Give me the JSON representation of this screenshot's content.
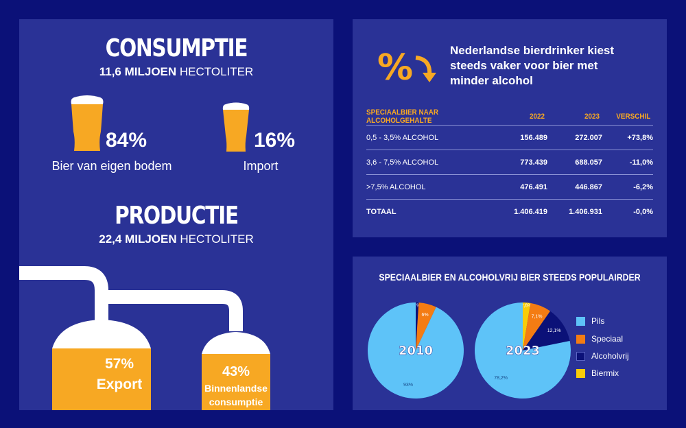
{
  "consumptie": {
    "title": "CONSUMPTIE",
    "amount_bold": "11,6 MILJOEN",
    "amount_unit": " HECTOLITER",
    "items": [
      {
        "percent": "84%",
        "label": "Bier van eigen bodem"
      },
      {
        "percent": "16%",
        "label": "Import"
      }
    ]
  },
  "productie": {
    "title": "PRODUCTIE",
    "amount_bold": "22,4 MILJOEN",
    "amount_unit": " HECTOLITER",
    "tanks": [
      {
        "percent": "57%",
        "label": "Export"
      },
      {
        "percent": "43%",
        "label_line1": "Binnenlandse",
        "label_line2": "consumptie"
      }
    ]
  },
  "alcohol": {
    "icon": "percent-down-arrow-icon",
    "headline_lines": [
      "Nederlandse bierdrinker kiest",
      "steeds vaker voor bier met",
      "minder alcohol"
    ],
    "table": {
      "headers": [
        "SPECIAALBIER NAAR ALCOHOLGEHALTE",
        "2022",
        "2023",
        "VERSCHIL"
      ],
      "rows": [
        [
          "0,5 - 3,5% ALCOHOL",
          "156.489",
          "272.007",
          "+73,8%"
        ],
        [
          "3,6 - 7,5% ALCOHOL",
          "773.439",
          "688.057",
          "-11,0%"
        ],
        [
          ">7,5% ALCOHOL",
          "476.491",
          "446.867",
          "-6,2%"
        ],
        [
          "TOTAAL",
          "1.406.419",
          "1.406.931",
          "-0,0%"
        ]
      ]
    }
  },
  "populair": {
    "title": "SPECIAALBIER EN ALCOHOLVRIJ BIER STEEDS POPULAIRDER",
    "legend": [
      {
        "name": "Pils",
        "color": "#5ec3f8"
      },
      {
        "name": "Speciaal",
        "color": "#f47c13"
      },
      {
        "name": "Alcoholvrij",
        "color": "#0b1178"
      },
      {
        "name": "Biermix",
        "color": "#f9cc08"
      }
    ]
  },
  "chart_data": [
    {
      "type": "pie",
      "title": "2010",
      "categories": [
        "Pils",
        "Speciaal",
        "Alcoholvrij"
      ],
      "values": [
        93,
        6,
        1
      ],
      "labels": [
        "93%",
        "6%",
        "1%"
      ],
      "colors": [
        "#5ec3f8",
        "#f47c13",
        "#0b1178"
      ]
    },
    {
      "type": "pie",
      "title": "2023",
      "categories": [
        "Pils",
        "Speciaal",
        "Alcoholvrij",
        "Biermix"
      ],
      "values": [
        78.2,
        7.1,
        12.1,
        2.6
      ],
      "labels": [
        "78,2%",
        "7,1%",
        "12,1%",
        "2,6%"
      ],
      "colors": [
        "#5ec3f8",
        "#f47c13",
        "#0b1178",
        "#f9cc08"
      ]
    }
  ]
}
